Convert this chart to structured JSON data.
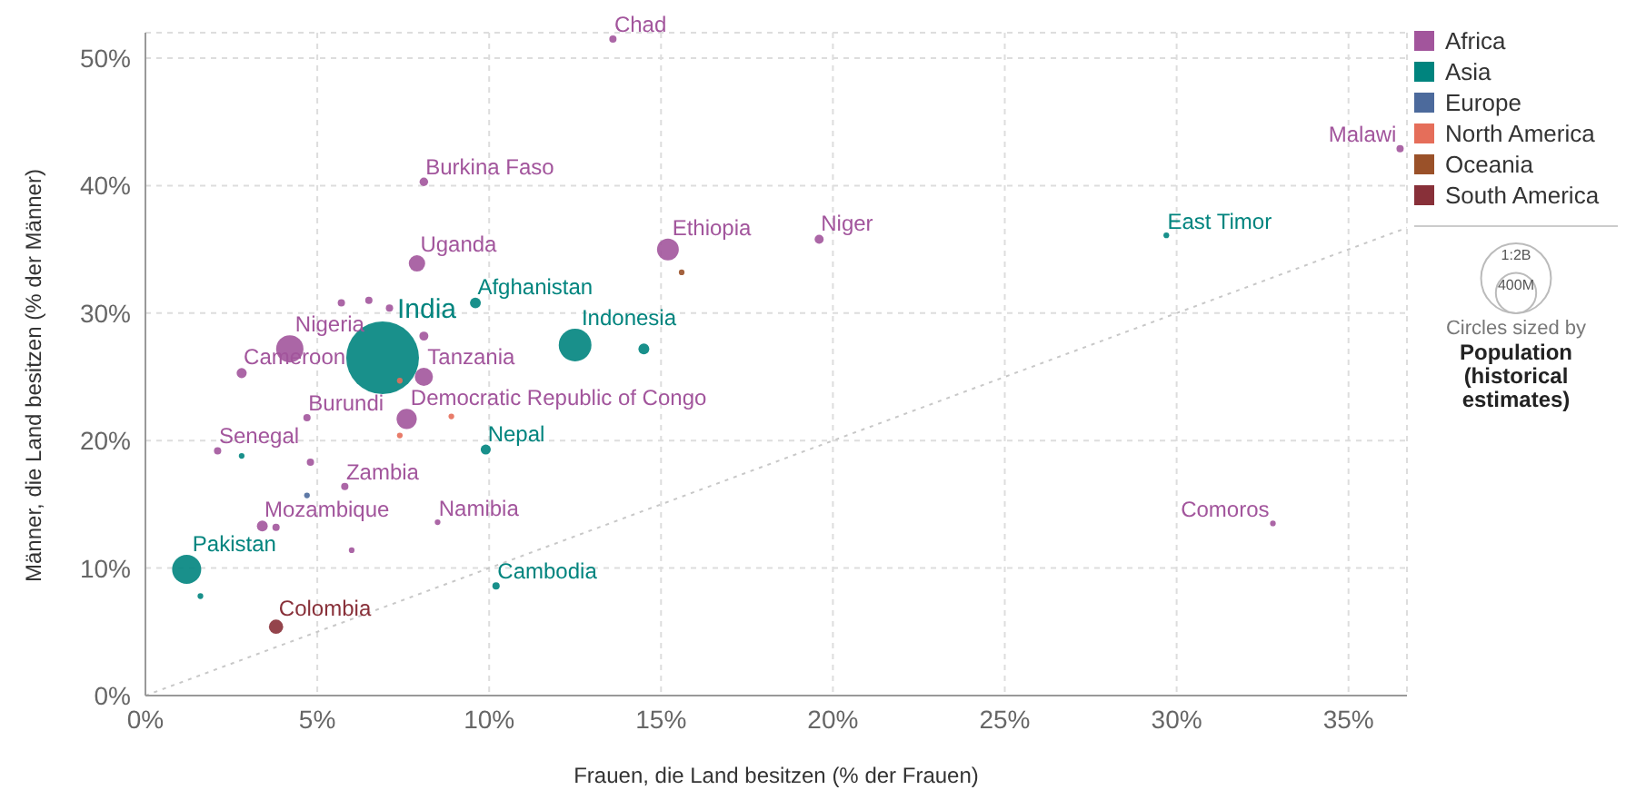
{
  "chart_data": {
    "type": "bubble",
    "xlabel": "Frauen, die Land besitzen (% der Frauen)",
    "ylabel": "Männer, die Land besitzen (% der Männer)",
    "xlim": [
      0,
      36.7
    ],
    "ylim": [
      0,
      52
    ],
    "xticks": [
      {
        "value": 0,
        "label": "0%"
      },
      {
        "value": 5,
        "label": "5%"
      },
      {
        "value": 10,
        "label": "10%"
      },
      {
        "value": 15,
        "label": "15%"
      },
      {
        "value": 20,
        "label": "20%"
      },
      {
        "value": 25,
        "label": "25%"
      },
      {
        "value": 30,
        "label": "30%"
      },
      {
        "value": 35,
        "label": "35%"
      }
    ],
    "yticks": [
      {
        "value": 0,
        "label": "0%"
      },
      {
        "value": 10,
        "label": "10%"
      },
      {
        "value": 20,
        "label": "20%"
      },
      {
        "value": 30,
        "label": "30%"
      },
      {
        "value": 40,
        "label": "40%"
      },
      {
        "value": 50,
        "label": "50%"
      }
    ],
    "grid": true,
    "legend": "right",
    "size_legend": [
      {
        "value": 1200,
        "label": "1:2B"
      },
      {
        "value": 400,
        "label": "400M"
      }
    ],
    "annotations": [
      "Circles sized by",
      "Population (historical estimates)"
    ],
    "series": [
      {
        "name": "Africa",
        "color": "#a2559c",
        "x": [
          13.6,
          36.5,
          8.1,
          15.2,
          19.6,
          7.9,
          5.7,
          6.5,
          7.1,
          8.1,
          8.1,
          4.2,
          2.8,
          4.7,
          7.6,
          2.1,
          4.8,
          5.8,
          3.4,
          3.8,
          8.5,
          6.0,
          32.8
        ],
        "values": [
          51.5,
          42.9,
          40.3,
          35.0,
          35.8,
          33.9,
          30.8,
          31.0,
          30.4,
          25.0,
          28.2,
          27.2,
          25.3,
          21.8,
          21.7,
          19.2,
          18.3,
          16.4,
          13.3,
          13.2,
          13.6,
          11.4,
          13.5
        ],
        "sizes": [
          13,
          13,
          18,
          117,
          20,
          66,
          13,
          13,
          13,
          81,
          20,
          183,
          25,
          13,
          100,
          13,
          13,
          13,
          29,
          13,
          8,
          8,
          8
        ],
        "value_labels": [
          "Chad",
          "Malawi",
          "Burkina Faso",
          "Ethiopia",
          "Niger",
          "Uganda",
          null,
          null,
          null,
          "Tanzania",
          null,
          "Nigeria",
          "Cameroon",
          "Burundi",
          "Democratic Republic of Congo",
          "Senegal",
          null,
          "Zambia",
          "Mozambique",
          null,
          "Namibia",
          null,
          "Comoros"
        ]
      },
      {
        "name": "Asia",
        "color": "#00847e",
        "x": [
          6.9,
          12.5,
          14.5,
          9.6,
          9.9,
          10.2,
          29.7,
          1.2,
          1.6,
          2.8
        ],
        "values": [
          26.5,
          27.5,
          27.2,
          30.8,
          19.3,
          8.6,
          36.1,
          9.9,
          7.8,
          18.8
        ],
        "sizes": [
          1300,
          263,
          29,
          29,
          25,
          13,
          8,
          208,
          8,
          8
        ],
        "value_labels": [
          "India",
          "Indonesia",
          null,
          "Afghanistan",
          "Nepal",
          "Cambodia",
          "East Timor",
          "Pakistan",
          null,
          null
        ]
      },
      {
        "name": "Europe",
        "color": "#4c6a9c",
        "x": [
          4.7
        ],
        "values": [
          15.7
        ],
        "sizes": [
          8
        ]
      },
      {
        "name": "North America",
        "color": "#e56e5a",
        "x": [
          7.4,
          8.9,
          7.4
        ],
        "values": [
          20.4,
          21.9,
          24.7
        ],
        "sizes": [
          8,
          8,
          8
        ]
      },
      {
        "name": "Oceania",
        "color": "#9a5129",
        "x": [
          15.6
        ],
        "values": [
          33.2
        ],
        "sizes": [
          8
        ]
      },
      {
        "name": "South America",
        "color": "#883039",
        "x": [
          3.8
        ],
        "values": [
          5.4
        ],
        "sizes": [
          50
        ],
        "value_labels": [
          "Colombia"
        ]
      },
      {
        "type": "line",
        "color": "#c8c8c8",
        "line_style": "dotted",
        "x": [
          0,
          36.7
        ],
        "values": [
          0,
          36.7
        ]
      }
    ]
  }
}
